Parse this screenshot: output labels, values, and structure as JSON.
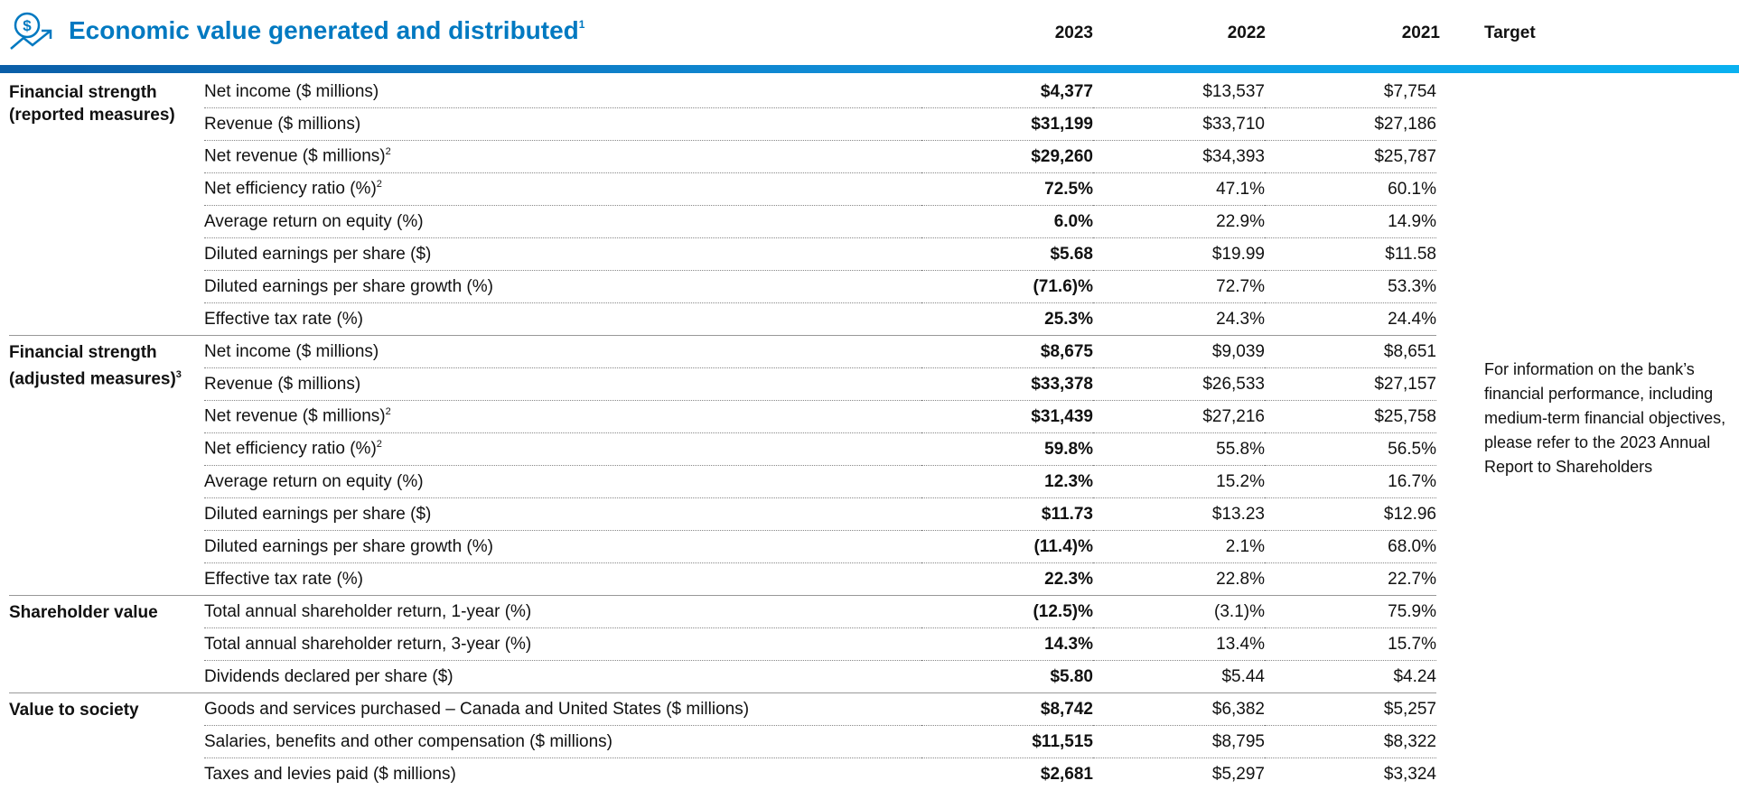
{
  "header": {
    "title": "Economic value generated and distributed",
    "title_note": "1",
    "columns": [
      "2023",
      "2022",
      "2021",
      "Target"
    ]
  },
  "groups": [
    {
      "label_lines": [
        "Financial strength",
        "(reported measures)"
      ],
      "label_note": null,
      "rows": [
        {
          "metric": "Net income ($ millions)",
          "note": null,
          "values": [
            "$4,377",
            "$13,537",
            "$7,754"
          ]
        },
        {
          "metric": "Revenue ($ millions)",
          "note": null,
          "values": [
            "$31,199",
            "$33,710",
            "$27,186"
          ]
        },
        {
          "metric": "Net revenue ($ millions)",
          "note": "2",
          "values": [
            "$29,260",
            "$34,393",
            "$25,787"
          ]
        },
        {
          "metric": "Net efficiency ratio (%)",
          "note": "2",
          "values": [
            "72.5%",
            "47.1%",
            "60.1%"
          ]
        },
        {
          "metric": "Average return on equity (%)",
          "note": null,
          "values": [
            "6.0%",
            "22.9%",
            "14.9%"
          ]
        },
        {
          "metric": "Diluted earnings per share ($)",
          "note": null,
          "values": [
            "$5.68",
            "$19.99",
            "$11.58"
          ]
        },
        {
          "metric": "Diluted earnings per share growth (%)",
          "note": null,
          "values": [
            "(71.6)%",
            "72.7%",
            "53.3%"
          ]
        },
        {
          "metric": "Effective tax rate (%)",
          "note": null,
          "values": [
            "25.3%",
            "24.3%",
            "24.4%"
          ]
        }
      ]
    },
    {
      "label_lines": [
        "Financial strength",
        "(adjusted measures)"
      ],
      "label_note": "3",
      "rows": [
        {
          "metric": "Net income ($ millions)",
          "note": null,
          "values": [
            "$8,675",
            "$9,039",
            "$8,651"
          ]
        },
        {
          "metric": "Revenue ($ millions)",
          "note": null,
          "values": [
            "$33,378",
            "$26,533",
            "$27,157"
          ]
        },
        {
          "metric": "Net revenue ($ millions)",
          "note": "2",
          "values": [
            "$31,439",
            "$27,216",
            "$25,758"
          ]
        },
        {
          "metric": "Net efficiency ratio (%)",
          "note": "2",
          "values": [
            "59.8%",
            "55.8%",
            "56.5%"
          ]
        },
        {
          "metric": "Average return on equity (%)",
          "note": null,
          "values": [
            "12.3%",
            "15.2%",
            "16.7%"
          ]
        },
        {
          "metric": "Diluted earnings per share ($)",
          "note": null,
          "values": [
            "$11.73",
            "$13.23",
            "$12.96"
          ]
        },
        {
          "metric": "Diluted earnings per share growth (%)",
          "note": null,
          "values": [
            "(11.4)%",
            "2.1%",
            "68.0%"
          ]
        },
        {
          "metric": "Effective tax rate (%)",
          "note": null,
          "values": [
            "22.3%",
            "22.8%",
            "22.7%"
          ]
        }
      ]
    },
    {
      "label_lines": [
        "Shareholder value"
      ],
      "label_note": null,
      "rows": [
        {
          "metric": "Total annual shareholder return, 1-year (%)",
          "note": null,
          "values": [
            "(12.5)%",
            "(3.1)%",
            "75.9%"
          ]
        },
        {
          "metric": "Total annual shareholder return, 3-year (%)",
          "note": null,
          "values": [
            "14.3%",
            "13.4%",
            "15.7%"
          ]
        },
        {
          "metric": "Dividends declared per share ($)",
          "note": null,
          "values": [
            "$5.80",
            "$5.44",
            "$4.24"
          ]
        }
      ]
    },
    {
      "label_lines": [
        "Value to society"
      ],
      "label_note": null,
      "rows": [
        {
          "metric": "Goods and services purchased – Canada and United States ($ millions)",
          "note": null,
          "values": [
            "$8,742",
            "$6,382",
            "$5,257"
          ]
        },
        {
          "metric": "Salaries, benefits and other compensation ($ millions)",
          "note": null,
          "values": [
            "$11,515",
            "$8,795",
            "$8,322"
          ]
        },
        {
          "metric": "Taxes and levies paid ($ millions)",
          "note": null,
          "values": [
            "$2,681",
            "$5,297",
            "$3,324"
          ]
        }
      ]
    }
  ],
  "target_text": "For information on the bank’s financial performance, including medium-term financial objectives, please refer to the 2023 Annual Report to Shareholders"
}
